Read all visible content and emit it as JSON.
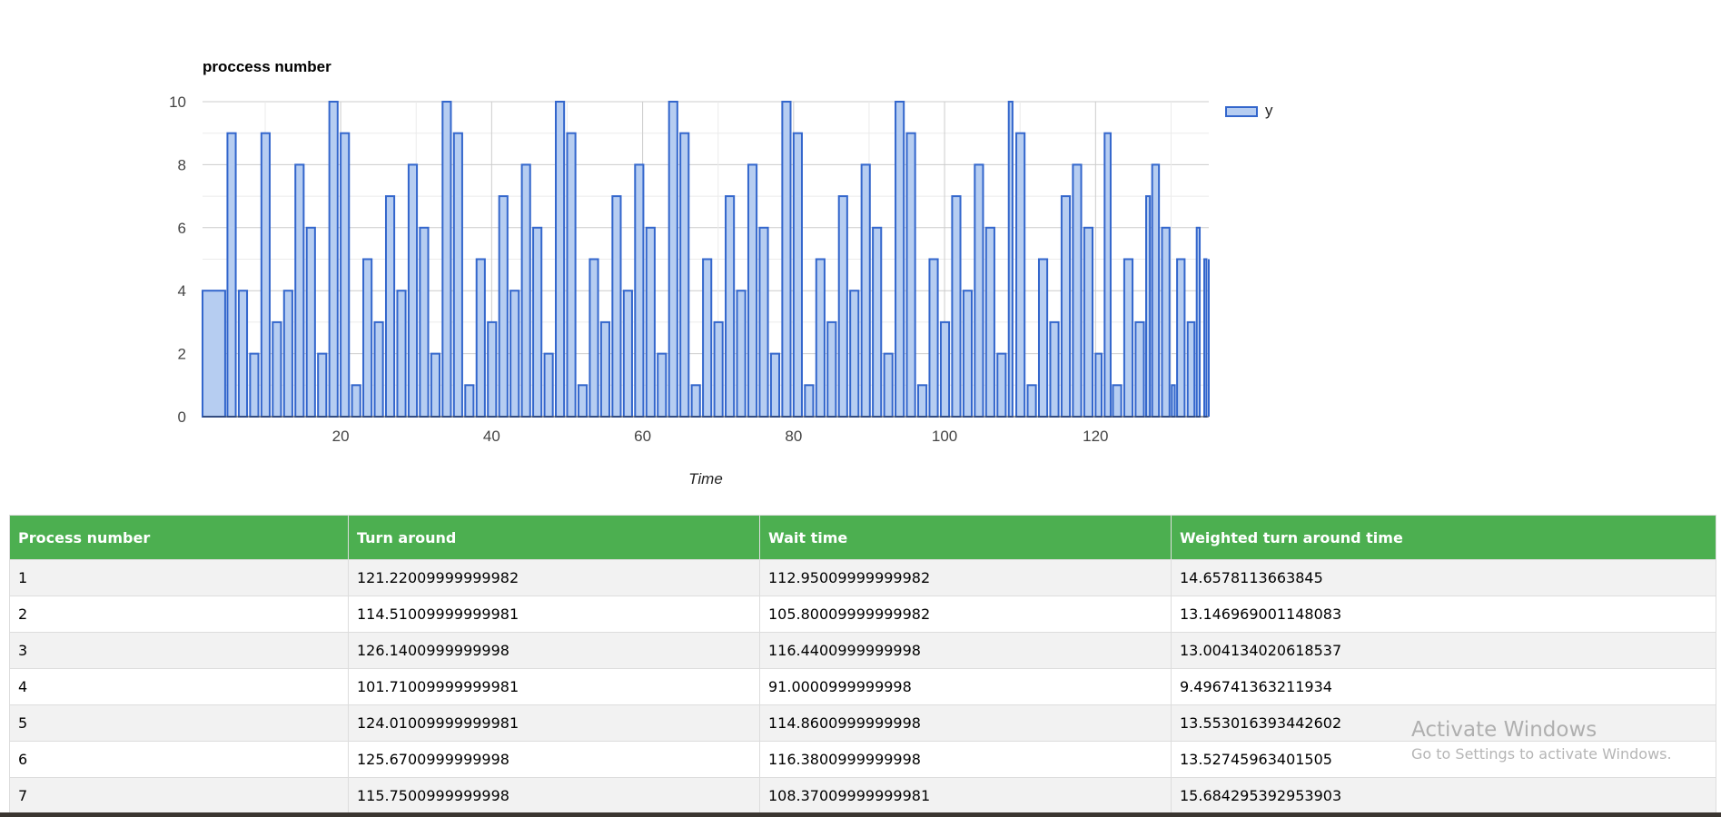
{
  "chart_data": {
    "type": "bar",
    "title": "proccess number",
    "xlabel": "Time",
    "ylabel": "",
    "xlim": [
      1.7,
      135
    ],
    "ylim": [
      0,
      10
    ],
    "xticks": [
      20,
      40,
      60,
      80,
      100,
      120
    ],
    "yticks": [
      0,
      2,
      4,
      6,
      8,
      10
    ],
    "grid": true,
    "legend_position": "top-right",
    "series": [
      {
        "name": "y",
        "color": "#3366cc",
        "fill": "#b6cdf1",
        "points": [
          {
            "x": 1.7,
            "w": 3.0,
            "y": 4
          },
          {
            "x": 5.0,
            "w": 1.1,
            "y": 9
          },
          {
            "x": 6.5,
            "w": 1.1,
            "y": 4
          },
          {
            "x": 8.0,
            "w": 1.1,
            "y": 2
          },
          {
            "x": 9.5,
            "w": 1.1,
            "y": 9
          },
          {
            "x": 11.0,
            "w": 1.1,
            "y": 3
          },
          {
            "x": 12.5,
            "w": 1.1,
            "y": 4
          },
          {
            "x": 14.0,
            "w": 1.1,
            "y": 8
          },
          {
            "x": 15.5,
            "w": 1.1,
            "y": 6
          },
          {
            "x": 17.0,
            "w": 1.1,
            "y": 2
          },
          {
            "x": 18.5,
            "w": 1.1,
            "y": 10
          },
          {
            "x": 20.0,
            "w": 1.1,
            "y": 9
          },
          {
            "x": 21.5,
            "w": 1.1,
            "y": 1
          },
          {
            "x": 23.0,
            "w": 1.1,
            "y": 5
          },
          {
            "x": 24.5,
            "w": 1.1,
            "y": 3
          },
          {
            "x": 26.0,
            "w": 1.1,
            "y": 7
          },
          {
            "x": 27.5,
            "w": 1.1,
            "y": 4
          },
          {
            "x": 29.0,
            "w": 1.1,
            "y": 8
          },
          {
            "x": 30.5,
            "w": 1.1,
            "y": 6
          },
          {
            "x": 32.0,
            "w": 1.1,
            "y": 2
          },
          {
            "x": 33.5,
            "w": 1.1,
            "y": 10
          },
          {
            "x": 35.0,
            "w": 1.1,
            "y": 9
          },
          {
            "x": 36.5,
            "w": 1.1,
            "y": 1
          },
          {
            "x": 38.0,
            "w": 1.1,
            "y": 5
          },
          {
            "x": 39.5,
            "w": 1.1,
            "y": 3
          },
          {
            "x": 41.0,
            "w": 1.1,
            "y": 7
          },
          {
            "x": 42.5,
            "w": 1.1,
            "y": 4
          },
          {
            "x": 44.0,
            "w": 1.1,
            "y": 8
          },
          {
            "x": 45.5,
            "w": 1.1,
            "y": 6
          },
          {
            "x": 47.0,
            "w": 1.1,
            "y": 2
          },
          {
            "x": 48.5,
            "w": 1.1,
            "y": 10
          },
          {
            "x": 50.0,
            "w": 1.1,
            "y": 9
          },
          {
            "x": 51.5,
            "w": 1.1,
            "y": 1
          },
          {
            "x": 53.0,
            "w": 1.1,
            "y": 5
          },
          {
            "x": 54.5,
            "w": 1.1,
            "y": 3
          },
          {
            "x": 56.0,
            "w": 1.1,
            "y": 7
          },
          {
            "x": 57.5,
            "w": 1.1,
            "y": 4
          },
          {
            "x": 59.0,
            "w": 1.1,
            "y": 8
          },
          {
            "x": 60.5,
            "w": 1.1,
            "y": 6
          },
          {
            "x": 62.0,
            "w": 1.1,
            "y": 2
          },
          {
            "x": 63.5,
            "w": 1.1,
            "y": 10
          },
          {
            "x": 65.0,
            "w": 1.1,
            "y": 9
          },
          {
            "x": 66.5,
            "w": 1.1,
            "y": 1
          },
          {
            "x": 68.0,
            "w": 1.1,
            "y": 5
          },
          {
            "x": 69.5,
            "w": 1.1,
            "y": 3
          },
          {
            "x": 71.0,
            "w": 1.1,
            "y": 7
          },
          {
            "x": 72.5,
            "w": 1.1,
            "y": 4
          },
          {
            "x": 74.0,
            "w": 1.1,
            "y": 8
          },
          {
            "x": 75.5,
            "w": 1.1,
            "y": 6
          },
          {
            "x": 77.0,
            "w": 1.1,
            "y": 2
          },
          {
            "x": 78.5,
            "w": 1.1,
            "y": 10
          },
          {
            "x": 80.0,
            "w": 1.1,
            "y": 9
          },
          {
            "x": 81.5,
            "w": 1.1,
            "y": 1
          },
          {
            "x": 83.0,
            "w": 1.1,
            "y": 5
          },
          {
            "x": 84.5,
            "w": 1.1,
            "y": 3
          },
          {
            "x": 86.0,
            "w": 1.1,
            "y": 7
          },
          {
            "x": 87.5,
            "w": 1.1,
            "y": 4
          },
          {
            "x": 89.0,
            "w": 1.1,
            "y": 8
          },
          {
            "x": 90.5,
            "w": 1.1,
            "y": 6
          },
          {
            "x": 92.0,
            "w": 1.1,
            "y": 2
          },
          {
            "x": 93.5,
            "w": 1.1,
            "y": 10
          },
          {
            "x": 95.0,
            "w": 1.1,
            "y": 9
          },
          {
            "x": 96.5,
            "w": 1.1,
            "y": 1
          },
          {
            "x": 98.0,
            "w": 1.1,
            "y": 5
          },
          {
            "x": 99.5,
            "w": 1.1,
            "y": 3
          },
          {
            "x": 101.0,
            "w": 1.1,
            "y": 7
          },
          {
            "x": 102.5,
            "w": 1.1,
            "y": 4
          },
          {
            "x": 104.0,
            "w": 1.1,
            "y": 8
          },
          {
            "x": 105.5,
            "w": 1.1,
            "y": 6
          },
          {
            "x": 107.0,
            "w": 1.1,
            "y": 2
          },
          {
            "x": 108.5,
            "w": 0.5,
            "y": 10
          },
          {
            "x": 109.5,
            "w": 1.1,
            "y": 9
          },
          {
            "x": 111.0,
            "w": 1.1,
            "y": 1
          },
          {
            "x": 112.5,
            "w": 1.1,
            "y": 5
          },
          {
            "x": 114.0,
            "w": 1.1,
            "y": 3
          },
          {
            "x": 115.5,
            "w": 1.1,
            "y": 7
          },
          {
            "x": 117.0,
            "w": 1.1,
            "y": 8
          },
          {
            "x": 118.5,
            "w": 1.1,
            "y": 6
          },
          {
            "x": 120.0,
            "w": 0.8,
            "y": 2
          },
          {
            "x": 121.2,
            "w": 0.8,
            "y": 9
          },
          {
            "x": 122.3,
            "w": 1.1,
            "y": 1
          },
          {
            "x": 123.8,
            "w": 1.1,
            "y": 5
          },
          {
            "x": 125.3,
            "w": 1.1,
            "y": 3
          },
          {
            "x": 126.7,
            "w": 0.5,
            "y": 7
          },
          {
            "x": 127.5,
            "w": 0.9,
            "y": 8
          },
          {
            "x": 128.8,
            "w": 1.0,
            "y": 6
          },
          {
            "x": 130.1,
            "w": 0.4,
            "y": 1
          },
          {
            "x": 130.8,
            "w": 1.0,
            "y": 5
          },
          {
            "x": 132.2,
            "w": 0.9,
            "y": 3
          },
          {
            "x": 133.4,
            "w": 0.4,
            "y": 6
          },
          {
            "x": 134.4,
            "w": 0.3,
            "y": 5
          }
        ]
      }
    ]
  },
  "table": {
    "headers": [
      "Process number",
      "Turn around",
      "Wait time",
      "Weighted turn around time"
    ],
    "rows": [
      [
        "1",
        "121.22009999999982",
        "112.95009999999982",
        "14.6578113663845"
      ],
      [
        "2",
        "114.51009999999981",
        "105.80009999999982",
        "13.146969001148083"
      ],
      [
        "3",
        "126.1400999999998",
        "116.4400999999998",
        "13.004134020618537"
      ],
      [
        "4",
        "101.71009999999981",
        "91.0000999999998",
        "9.496741363211934"
      ],
      [
        "5",
        "124.01009999999981",
        "114.8600999999998",
        "13.553016393442602"
      ],
      [
        "6",
        "125.6700999999998",
        "116.3800999999998",
        "13.52745963401505"
      ],
      [
        "7",
        "115.7500999999998",
        "108.37009999999981",
        "15.684295392953903"
      ]
    ]
  },
  "watermark": {
    "title": "Activate Windows",
    "subtitle": "Go to Settings to activate Windows."
  }
}
